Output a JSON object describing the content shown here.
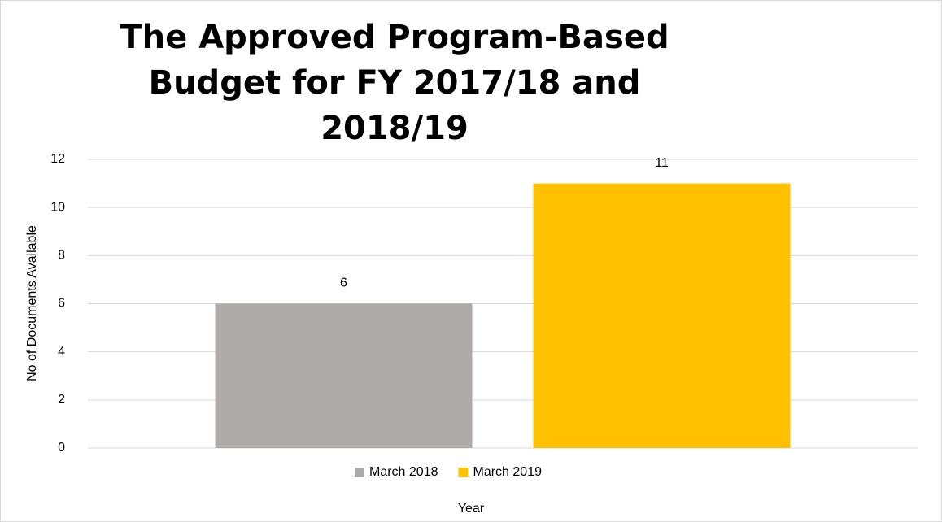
{
  "chart_data": {
    "type": "bar",
    "title": "The Approved Program-Based Budget for FY 2017/18 and 2018/19",
    "xlabel": "Year",
    "ylabel": "No of Documents Available",
    "categories": [
      null
    ],
    "series": [
      {
        "name": "March 2018",
        "color": "#aeaaaa",
        "values": [
          6
        ]
      },
      {
        "name": "March 2019",
        "color": "#ffc000",
        "values": [
          11
        ]
      }
    ],
    "ylim": [
      0,
      12
    ],
    "yticks": [
      0,
      2,
      4,
      6,
      8,
      10,
      12
    ],
    "grid": true,
    "legend": "bottom"
  }
}
